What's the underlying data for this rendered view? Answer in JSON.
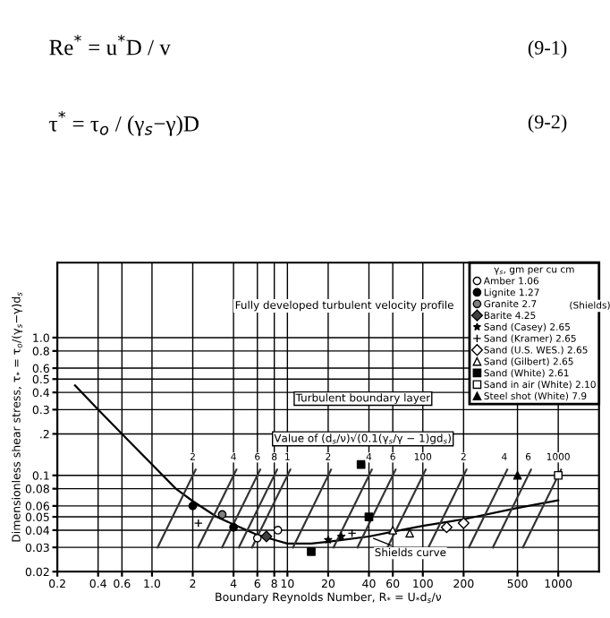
{
  "chart_data": {
    "type": "scatter",
    "xlabel": "Boundary Reynolds Number, R$_{*}$ = U$_{*}$d$_{s}$/ν",
    "ylabel": "Dimensionless shear stress, τ$_{*}$ = τ$_{o}$/(γ$_{s}$−γ)d$_{s}$",
    "legend_title": "γ$_{s}$, gm per cu cm",
    "log": "xy",
    "grid": true,
    "legend": "top right",
    "xlim": [
      0.2,
      2000
    ],
    "ylim": [
      0.02,
      3.5
    ],
    "xticks": [
      0.2,
      0.4,
      0.6,
      {
        "value": 1,
        "label": "1.0"
      },
      2,
      4,
      6,
      8,
      10,
      20,
      40,
      60,
      100,
      200,
      500,
      1000
    ],
    "yticks": [
      0.02,
      0.03,
      0.04,
      0.05,
      0.06,
      0.08,
      0.1,
      {
        "value": 0.2,
        "label": ".2"
      },
      0.3,
      0.4,
      0.5,
      0.6,
      0.8,
      {
        "value": 1,
        "label": "1.0"
      }
    ],
    "annotations": [
      "Re$^{*}$ = u$^{*}$D / v",
      "(9-1)",
      "τ$^{*}$ = τ$_{o}$ / (γ$_{s}$−γ)D",
      "(9-2)",
      "Fully developed turbulent velocity profile",
      "Turbulent boundary layer",
      "Value of (d$_{s}$/ν)√(0.1(γ$_{s}$/γ − 1)gd$_{s}$)",
      "(Shields)",
      {
        "text": "2",
        "x": 2,
        "y": 0.125
      },
      {
        "text": "4",
        "x": 4,
        "y": 0.125
      },
      {
        "text": "6",
        "x": 6,
        "y": 0.125
      },
      {
        "text": "8",
        "x": 8,
        "y": 0.125
      },
      {
        "text": "1",
        "x": 10,
        "y": 0.125
      },
      {
        "text": "2",
        "x": 20,
        "y": 0.125
      },
      {
        "text": "4",
        "x": 40,
        "y": 0.125
      },
      {
        "text": "6",
        "x": 60,
        "y": 0.125
      },
      {
        "text": "100",
        "x": 100,
        "y": 0.125
      },
      {
        "text": "2",
        "x": 200,
        "y": 0.125
      },
      {
        "text": "4",
        "x": 400,
        "y": 0.125
      },
      {
        "text": "6",
        "x": 600,
        "y": 0.125
      },
      {
        "text": "1000",
        "x": 1000,
        "y": 0.125
      },
      {
        "text": "Shields curve",
        "x": 40,
        "y": 0.036
      }
    ],
    "series": [
      {
        "type": "line",
        "color": "#000000",
        "marker": "none",
        "x": [
          0.27,
          0.4,
          0.6,
          1,
          1.5,
          2,
          3,
          4,
          6,
          8,
          10,
          15,
          20,
          40,
          60,
          100,
          200,
          500,
          1000
        ],
        "values": [
          0.45,
          0.3,
          0.2,
          0.12,
          0.08,
          0.065,
          0.05,
          0.044,
          0.037,
          0.034,
          0.032,
          0.032,
          0.033,
          0.036,
          0.039,
          0.043,
          0.048,
          0.058,
          0.066
        ]
      },
      {
        "type": "line",
        "color": "#333333",
        "marker": "none",
        "x": [
          2.1,
          1.1
        ],
        "values": [
          0.11,
          0.03
        ]
      },
      {
        "type": "line",
        "color": "#333333",
        "marker": "none",
        "x": [
          4.2,
          2.19
        ],
        "values": [
          0.11,
          0.03
        ]
      },
      {
        "type": "line",
        "color": "#333333",
        "marker": "none",
        "x": [
          6.29,
          3.29
        ],
        "values": [
          0.11,
          0.03
        ]
      },
      {
        "type": "line",
        "color": "#333333",
        "marker": "none",
        "x": [
          8.39,
          4.38
        ],
        "values": [
          0.11,
          0.03
        ]
      },
      {
        "type": "line",
        "color": "#333333",
        "marker": "none",
        "x": [
          10.5,
          5.48
        ],
        "values": [
          0.11,
          0.03
        ]
      },
      {
        "type": "line",
        "color": "#333333",
        "marker": "none",
        "x": [
          21,
          11
        ],
        "values": [
          0.11,
          0.03
        ]
      },
      {
        "type": "line",
        "color": "#333333",
        "marker": "none",
        "x": [
          42,
          21.9
        ],
        "values": [
          0.11,
          0.03
        ]
      },
      {
        "type": "line",
        "color": "#333333",
        "marker": "none",
        "x": [
          62.9,
          32.9
        ],
        "values": [
          0.11,
          0.03
        ]
      },
      {
        "type": "line",
        "color": "#333333",
        "marker": "none",
        "x": [
          105,
          54.8
        ],
        "values": [
          0.11,
          0.03
        ]
      },
      {
        "type": "line",
        "color": "#333333",
        "marker": "none",
        "x": [
          210,
          110
        ],
        "values": [
          0.11,
          0.03
        ]
      },
      {
        "type": "line",
        "color": "#333333",
        "marker": "none",
        "x": [
          420,
          219
        ],
        "values": [
          0.11,
          0.03
        ]
      },
      {
        "type": "line",
        "color": "#333333",
        "marker": "none",
        "x": [
          629,
          329
        ],
        "values": [
          0.11,
          0.03
        ]
      },
      {
        "type": "line",
        "color": "#333333",
        "marker": "none",
        "x": [
          1049,
          548
        ],
        "values": [
          0.11,
          0.03
        ]
      },
      {
        "name": "Amber 1.06",
        "color": "#ffffff",
        "marker": "circle",
        "x": [
          8.5,
          6
        ],
        "values": [
          0.04,
          0.035
        ]
      },
      {
        "name": "Lignite 1.27",
        "color": "#000000",
        "marker": "circle",
        "x": [
          2,
          4
        ],
        "values": [
          0.06,
          0.042
        ]
      },
      {
        "name": "Granite 2.7",
        "color": "#808080",
        "marker": "circle",
        "x": [
          3.3
        ],
        "values": [
          0.052
        ]
      },
      {
        "name": "Barite 4.25",
        "color": "#404040",
        "marker": "diamond",
        "x": [
          7
        ],
        "values": [
          0.036
        ]
      },
      {
        "name": "Sand (Casey) 2.65",
        "color": "#000000",
        "marker": "star",
        "x": [
          20,
          25
        ],
        "values": [
          0.034,
          0.036
        ]
      },
      {
        "name": "Sand (Kramer) 2.65",
        "color": "#000000",
        "marker": "cross",
        "x": [
          2.2,
          30
        ],
        "values": [
          0.045,
          0.038
        ]
      },
      {
        "name": "Sand (U.S. WES.) 2.65",
        "color": "#ffffff",
        "marker": "diamond",
        "x": [
          150,
          200
        ],
        "values": [
          0.042,
          0.045
        ]
      },
      {
        "name": "Sand (Gilbert) 2.65",
        "color": "#ffffff",
        "marker": "triangle",
        "x": [
          60,
          80
        ],
        "values": [
          0.04,
          0.038
        ]
      },
      {
        "name": "Sand (White) 2.61",
        "color": "#000000",
        "marker": "square",
        "x": [
          15,
          35,
          40
        ],
        "values": [
          0.028,
          0.12,
          0.05
        ]
      },
      {
        "name": "Sand in air (White) 2.10",
        "color": "#ffffff",
        "marker": "square",
        "x": [
          1000
        ],
        "values": [
          0.1
        ]
      },
      {
        "name": "Steel shot (White) 7.9",
        "color": "#000000",
        "marker": "triangle",
        "x": [
          500
        ],
        "values": [
          0.1
        ]
      }
    ]
  }
}
